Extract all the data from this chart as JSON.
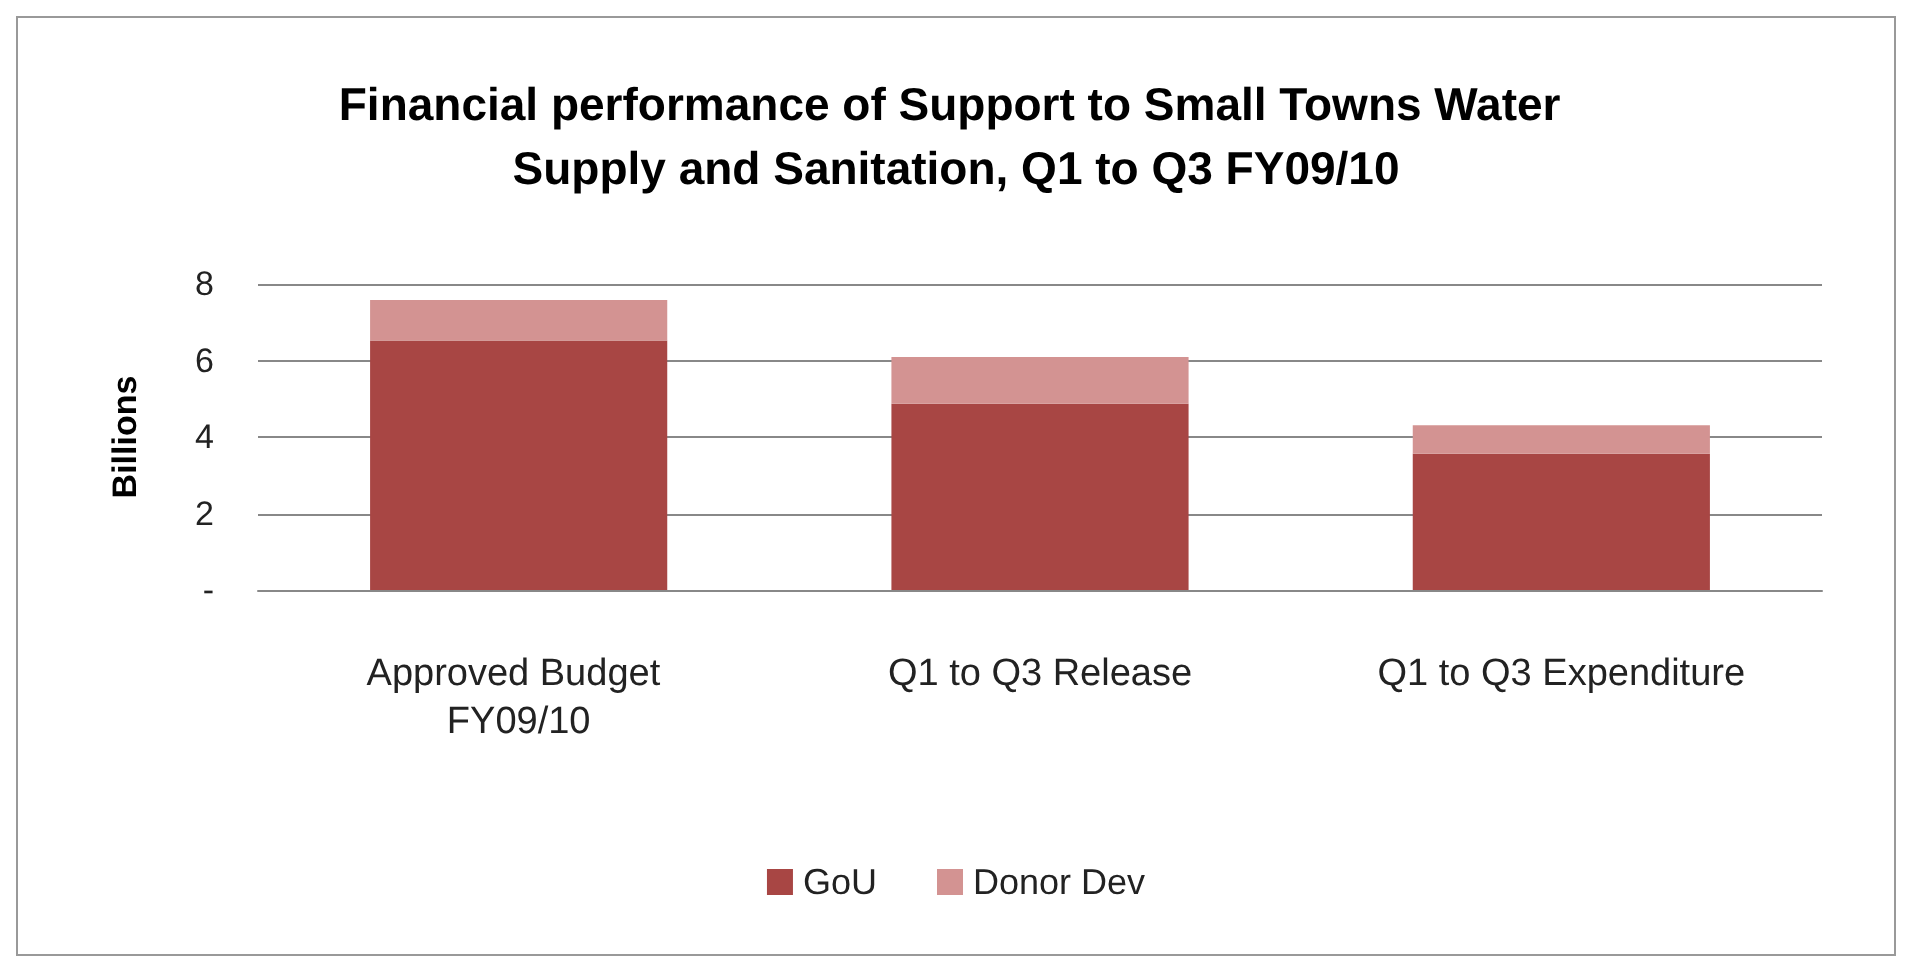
{
  "chart_data": {
    "type": "bar",
    "title": "Financial performance of Support to Small Towns Water Supply and Sanitation, Q1 to Q3 FY09/10",
    "ylabel": "Billions",
    "categories": [
      "Approved Budget FY09/10",
      "Q1 to Q3 Release",
      "Q1 to Q3 Expenditure"
    ],
    "stacked": true,
    "series": [
      {
        "name": "GoU",
        "color": "#a84644",
        "values": [
          6.52,
          4.87,
          3.56
        ]
      },
      {
        "name": "Donor Dev",
        "color": "#d39392",
        "values": [
          1.06,
          1.22,
          0.75
        ]
      }
    ],
    "ylim": [
      0,
      8
    ],
    "yticks": [
      {
        "value": 0,
        "label": "-"
      },
      2,
      4,
      6,
      8
    ],
    "grid": "y",
    "legend": "bottom"
  }
}
